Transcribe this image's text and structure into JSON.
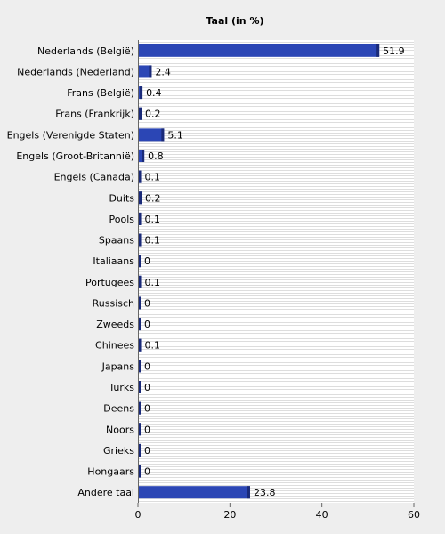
{
  "chart_data": {
    "type": "bar",
    "orientation": "horizontal",
    "title": "Taal (in %)",
    "xlabel": "",
    "ylabel": "",
    "categories": [
      "Nederlands (België)",
      "Nederlands (Nederland)",
      "Frans (België)",
      "Frans (Frankrijk)",
      "Engels (Verenigde Staten)",
      "Engels (Groot-Britannië)",
      "Engels (Canada)",
      "Duits",
      "Pools",
      "Spaans",
      "Italiaans",
      "Portugees",
      "Russisch",
      "Zweeds",
      "Chinees",
      "Japans",
      "Turks",
      "Deens",
      "Noors",
      "Grieks",
      "Hongaars",
      "Andere taal"
    ],
    "values": [
      51.9,
      2.4,
      0.4,
      0.2,
      5.1,
      0.8,
      0.1,
      0.2,
      0.1,
      0.1,
      0,
      0.1,
      0,
      0,
      0.1,
      0,
      0,
      0,
      0,
      0,
      0,
      23.8
    ],
    "value_labels": [
      "51.9",
      "2.4",
      "0.4",
      "0.2",
      "5.1",
      "0.8",
      "0.1",
      "0.2",
      "0.1",
      "0.1",
      "0",
      "0.1",
      "0",
      "0",
      "0.1",
      "0",
      "0",
      "0",
      "0",
      "0",
      "0",
      "23.8"
    ],
    "xlim": [
      0,
      60
    ],
    "xticks": [
      0,
      20,
      40,
      60
    ],
    "xtick_labels": [
      "0",
      "20",
      "40",
      "60"
    ],
    "grid": true,
    "legend": "none",
    "colors": {
      "bar": "#2b46b5",
      "bar_edge": "#1a2a78",
      "plot_background": "#ffffff",
      "grid_line": "#dddddd",
      "page_background": "#eeeeee"
    }
  }
}
